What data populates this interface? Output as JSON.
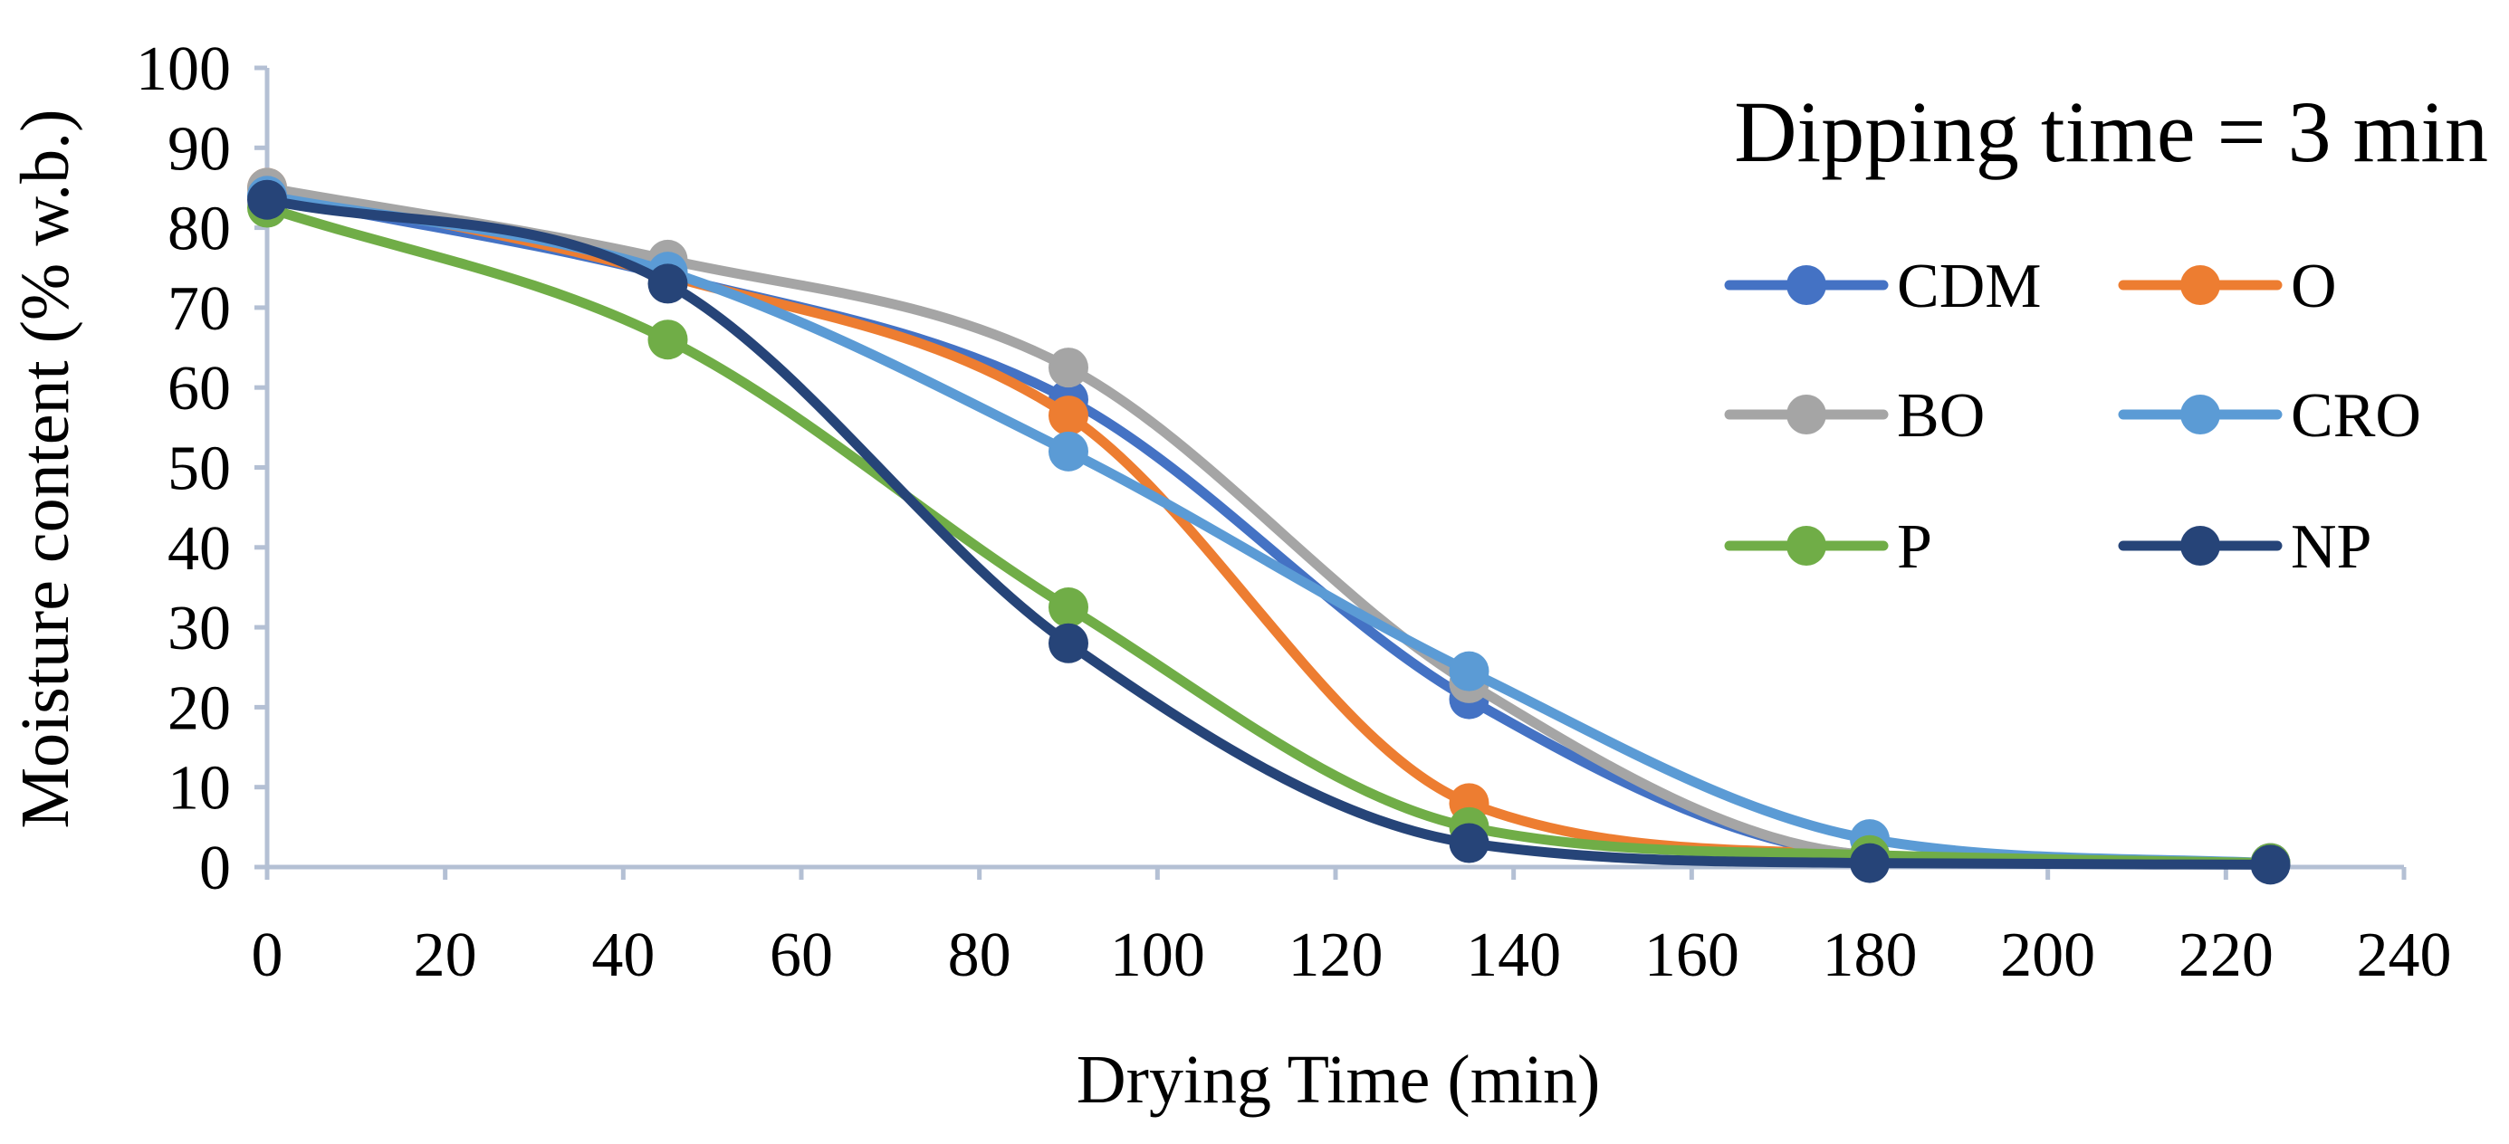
{
  "chart_data": {
    "type": "line",
    "title": "Dipping time = 3 min",
    "xlabel": "Drying Time (min)",
    "ylabel": "Moisture content (% w.b.)",
    "xlim": [
      0,
      240
    ],
    "ylim": [
      0,
      100
    ],
    "x_ticks": [
      0,
      20,
      40,
      60,
      80,
      100,
      120,
      140,
      160,
      180,
      200,
      220,
      240
    ],
    "y_ticks": [
      0,
      10,
      20,
      30,
      40,
      50,
      60,
      70,
      80,
      90,
      100
    ],
    "x_tick_labels": [
      "0",
      "20",
      "40",
      "60",
      "80",
      "100",
      "120",
      "140",
      "160",
      "180",
      "200",
      "220",
      "240"
    ],
    "y_tick_labels": [
      "0",
      "10",
      "20",
      "30",
      "40",
      "50",
      "60",
      "70",
      "80",
      "90",
      "100"
    ],
    "grid": false,
    "smooth": true,
    "legend_position": "top-right",
    "x": [
      0,
      45,
      90,
      135,
      180,
      225
    ],
    "series": [
      {
        "name": "CDM",
        "color": "#4472C4",
        "values": [
          84,
          74,
          58.5,
          21,
          1.5,
          0.5
        ]
      },
      {
        "name": "O",
        "color": "#ED7D31",
        "values": [
          85,
          74,
          56.5,
          8,
          1.5,
          0.5
        ]
      },
      {
        "name": "BO",
        "color": "#A5A5A5",
        "values": [
          85,
          76,
          62.5,
          23,
          1.5,
          0.5
        ]
      },
      {
        "name": "CRO",
        "color": "#5B9BD5",
        "values": [
          84,
          74.5,
          52,
          24.5,
          3.5,
          0.5
        ]
      },
      {
        "name": "P",
        "color": "#70AD47",
        "values": [
          82.5,
          66,
          32.5,
          5,
          1.5,
          0.5
        ]
      },
      {
        "name": "NP",
        "color": "#264478",
        "values": [
          83.5,
          73,
          28,
          3,
          0.5,
          0.3
        ]
      }
    ]
  }
}
